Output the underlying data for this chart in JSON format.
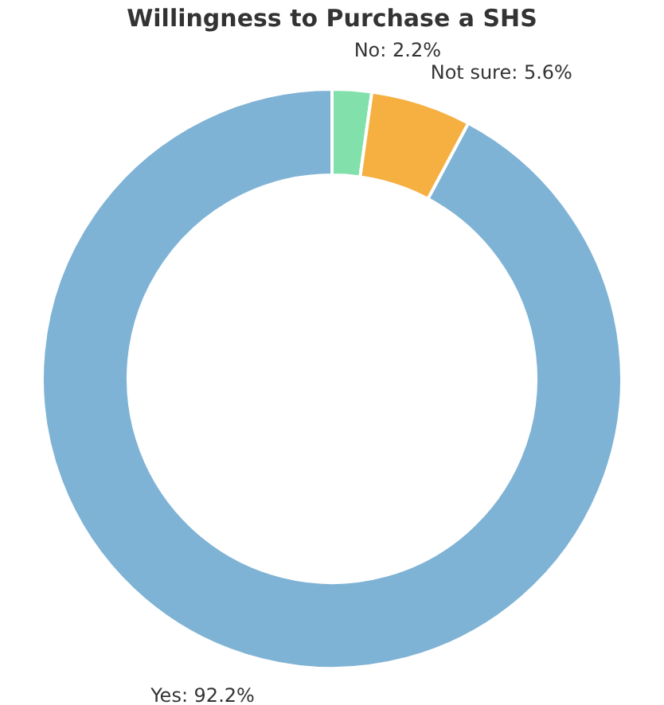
{
  "chart_data": {
    "type": "donut",
    "title": "Willingness to Purchase a SHS",
    "categories": [
      "No",
      "Not sure",
      "Yes"
    ],
    "values": [
      2.2,
      5.6,
      92.2
    ],
    "value_labels": [
      "2.2%",
      "5.6%",
      "92.2%"
    ],
    "colors": [
      "#82e0aa",
      "#f5b041",
      "#7fb3d5"
    ],
    "legend": false
  }
}
